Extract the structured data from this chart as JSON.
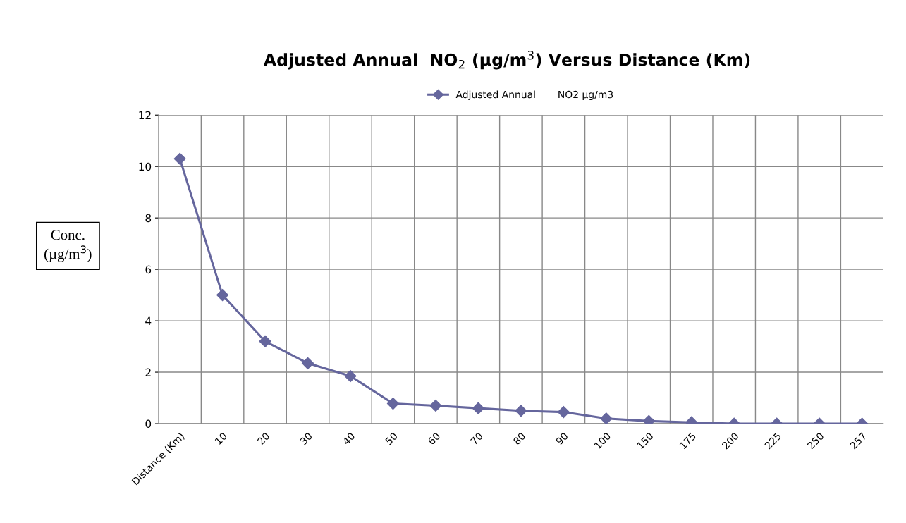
{
  "chart_data": {
    "type": "line",
    "title": "Adjusted Annual  NO$_{2}$ (µg/m$^{3}$) Versus Distance (Km)",
    "ylabel": "Conc.\n(µg/m$^{3}$)",
    "categories": [
      "Distance (Km)",
      "10",
      "20",
      "30",
      "40",
      "50",
      "60",
      "70",
      "80",
      "90",
      "100",
      "150",
      "175",
      "200",
      "225",
      "250",
      "257"
    ],
    "series": [
      {
        "name": "Adjusted Annual       NO2 µg/m3",
        "color": "#65669d",
        "values": [
          10.3,
          5.0,
          3.2,
          2.35,
          1.85,
          0.78,
          0.7,
          0.6,
          0.5,
          0.45,
          0.2,
          0.1,
          0.05,
          0.0,
          0.0,
          0.0,
          0.0
        ]
      }
    ],
    "ylim": [
      0,
      12
    ],
    "yticks": [
      0,
      2,
      4,
      6,
      8,
      10,
      12
    ],
    "grid": true,
    "legend": "top",
    "marker": "diamond",
    "line_style": "solid"
  }
}
